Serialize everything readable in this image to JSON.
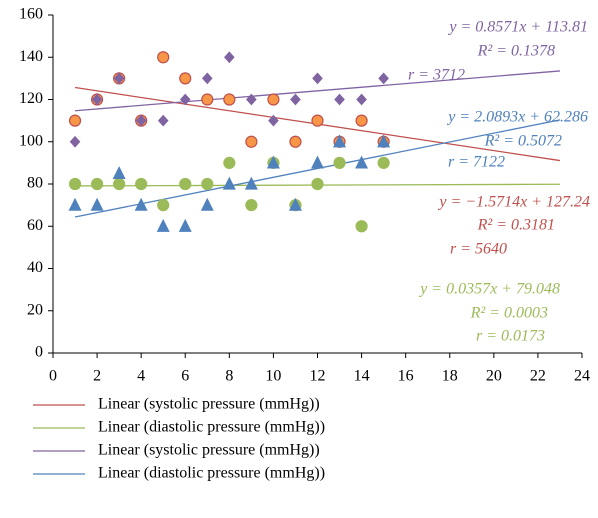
{
  "chart_data": {
    "type": "scatter",
    "x": [
      1,
      2,
      3,
      4,
      5,
      6,
      7,
      8,
      9,
      10,
      11,
      12,
      13,
      14,
      15
    ],
    "xlim": [
      0,
      24
    ],
    "xticks": [
      0,
      2,
      4,
      6,
      8,
      10,
      12,
      14,
      16,
      18,
      20,
      22,
      24
    ],
    "ylim": [
      0,
      160
    ],
    "yticks": [
      0,
      20,
      40,
      60,
      80,
      100,
      120,
      140,
      160
    ],
    "grid": false,
    "series": [
      {
        "marker": "circle",
        "color": "#f79646",
        "edge": "#c0504d",
        "values": [
          110,
          120,
          130,
          110,
          140,
          130,
          120,
          120,
          100,
          120,
          100,
          110,
          100,
          110,
          100
        ],
        "trendline": {
          "name": "Linear (systolic pressure (mmHg))",
          "color": "#c0504d",
          "slope": -1.5714,
          "intercept": 127.24,
          "x_range": [
            1,
            23
          ],
          "label": [
            "y = −1.5714x + 127.24",
            "R² = 0.3181",
            "r = 5640"
          ]
        }
      },
      {
        "marker": "circle",
        "color": "#9bbb59",
        "edge": "#9bbb59",
        "values": [
          80,
          80,
          80,
          80,
          70,
          80,
          80,
          90,
          70,
          90,
          70,
          80,
          90,
          60,
          90
        ],
        "trendline": {
          "name": "Linear (diastolic pressure (mmHg))",
          "color": "#9bbb59",
          "slope": 0.0357,
          "intercept": 79.048,
          "x_range": [
            1,
            23
          ],
          "label": [
            "y = 0.0357x + 79.048",
            "R² = 0.0003",
            "r = 0.0173"
          ]
        }
      },
      {
        "marker": "diamond",
        "color": "#8064a2",
        "edge": "#8064a2",
        "values": [
          100,
          120,
          130,
          110,
          110,
          120,
          130,
          140,
          120,
          110,
          120,
          130,
          120,
          120,
          130
        ],
        "trendline": {
          "name": "Linear (systolic pressure (mmHg))",
          "color": "#8064a2",
          "slope": 0.8571,
          "intercept": 113.81,
          "x_range": [
            1,
            23
          ],
          "label": [
            "y = 0.8571x + 113.81",
            "R² = 0.1378",
            "r = 3712"
          ]
        }
      },
      {
        "marker": "triangle",
        "color": "#4f81bd",
        "edge": "#4f81bd",
        "values": [
          70,
          70,
          85,
          70,
          60,
          60,
          70,
          80,
          80,
          90,
          70,
          90,
          100,
          90,
          100
        ],
        "trendline": {
          "name": "Linear (diastolic pressure (mmHg))",
          "color": "#4f81bd",
          "slope": 2.0893,
          "intercept": 62.286,
          "x_range": [
            1,
            23
          ],
          "label": [
            "y = 2.0893x + 62.286",
            "R² = 0.5072",
            "r = 7122"
          ]
        }
      }
    ]
  }
}
